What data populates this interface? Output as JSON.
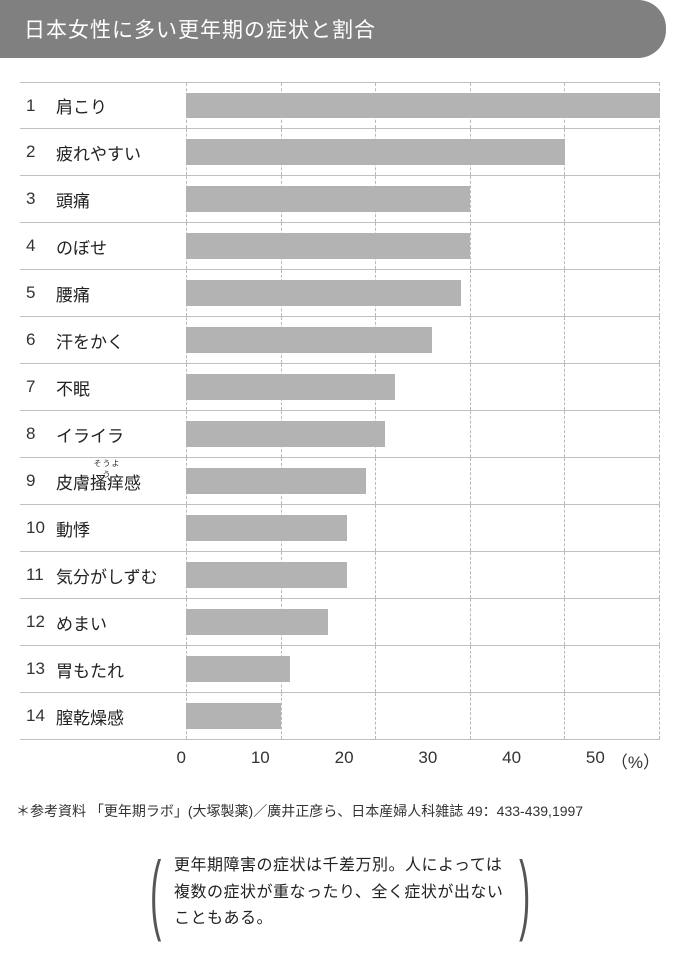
{
  "title": "日本女性に多い更年期の症状と割合",
  "chart": {
    "type": "bar",
    "xmax": 50,
    "x_tick_step": 10,
    "x_ticks": [
      "0",
      "10",
      "20",
      "30",
      "40",
      "50"
    ],
    "unit_label": "（%）",
    "bar_color": "#b3b3b3",
    "grid_color": "#b8b8b8",
    "row_border_color": "#bfbfbf",
    "background_color": "#ffffff",
    "title_bg_color": "#808080",
    "title_text_color": "#ffffff",
    "label_fontsize": 17,
    "rank_fontsize": 17,
    "tick_fontsize": 17,
    "rows": [
      {
        "rank": "1",
        "label": "肩こり",
        "value": 50
      },
      {
        "rank": "2",
        "label": "疲れやすい",
        "value": 40
      },
      {
        "rank": "3",
        "label": "頭痛",
        "value": 30
      },
      {
        "rank": "4",
        "label": "のぼせ",
        "value": 30
      },
      {
        "rank": "5",
        "label": "腰痛",
        "value": 29
      },
      {
        "rank": "6",
        "label": "汗をかく",
        "value": 26
      },
      {
        "rank": "7",
        "label": "不眠",
        "value": 22
      },
      {
        "rank": "8",
        "label": "イライラ",
        "value": 21
      },
      {
        "rank": "9",
        "label": "皮膚搔痒感",
        "ruby": "そうよう",
        "ruby_target": "搔痒",
        "value": 19
      },
      {
        "rank": "10",
        "label": "動悸",
        "value": 17
      },
      {
        "rank": "11",
        "label": "気分がしずむ",
        "value": 17
      },
      {
        "rank": "12",
        "label": "めまい",
        "value": 15
      },
      {
        "rank": "13",
        "label": "胃もたれ",
        "value": 11
      },
      {
        "rank": "14",
        "label": "膣乾燥感",
        "value": 10
      }
    ]
  },
  "footnote": "＊参考資料 「更年期ラボ」(大塚製薬)／廣井正彦ら、日本産婦人科雑誌 49：433-439,1997",
  "note": "更年期障害の症状は千差万別。人によっては複数の症状が重なったり、全く症状が出ないこともある。"
}
